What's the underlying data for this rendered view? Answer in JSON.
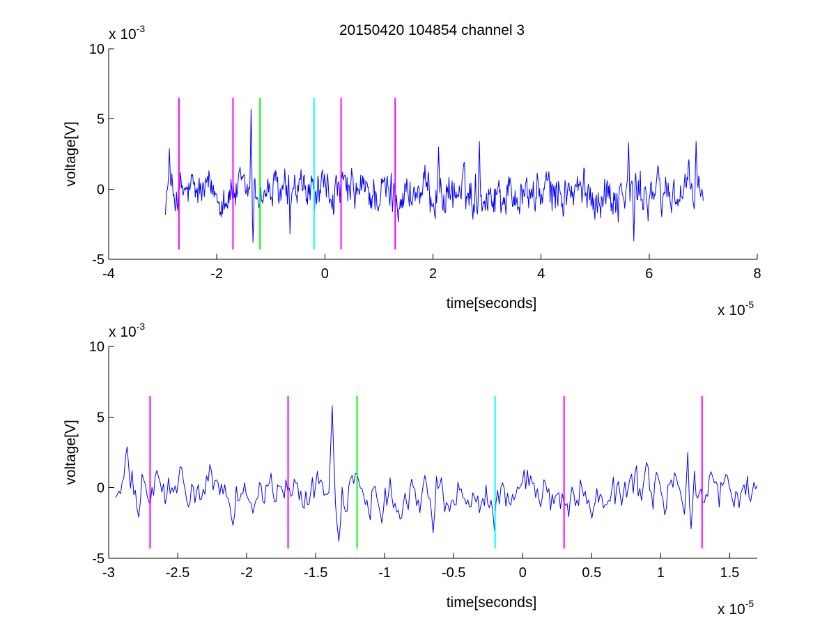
{
  "figure": {
    "title": "20150420 104854 channel 3"
  },
  "chart_data": [
    {
      "type": "line",
      "xlabel": "time[seconds]",
      "ylabel": "voltage[V]",
      "xlim": [
        -4,
        8
      ],
      "ylim": [
        -5,
        10
      ],
      "x_ticks": [
        -4,
        -2,
        0,
        2,
        4,
        6,
        8
      ],
      "y_ticks": [
        -5,
        0,
        5,
        10
      ],
      "x_tick_labels": [
        "-4",
        "-2",
        "0",
        "2",
        "4",
        "6",
        "8"
      ],
      "y_tick_labels": [
        "-5",
        "0",
        "5",
        "10"
      ],
      "x_exponent": {
        "base": "x 10",
        "power": "-5"
      },
      "y_exponent": {
        "base": "x 10",
        "power": "-3"
      },
      "grid": false,
      "series": [
        {
          "color": "#0000ff",
          "x_range": [
            -2.95,
            7.0
          ],
          "y_baseline": -0.3,
          "features": [
            {
              "x": -2.88,
              "y": 2.9
            },
            {
              "x": -1.37,
              "y": 5.7
            },
            {
              "x": -1.33,
              "y": -3.8
            },
            {
              "x": -0.65,
              "y": -3.2
            },
            {
              "x": 2.1,
              "y": 3.0
            },
            {
              "x": 2.86,
              "y": 3.4
            },
            {
              "x": 5.62,
              "y": 3.3
            },
            {
              "x": 5.72,
              "y": -3.7
            },
            {
              "x": 6.87,
              "y": 3.4
            }
          ]
        }
      ],
      "markers": [
        {
          "x": -2.7,
          "y_range": [
            -4.3,
            6.5
          ],
          "color": "#ff00ff"
        },
        {
          "x": -1.7,
          "y_range": [
            -4.3,
            6.5
          ],
          "color": "#ff00ff"
        },
        {
          "x": -1.2,
          "y_range": [
            -4.3,
            6.5
          ],
          "color": "#00ff00"
        },
        {
          "x": -0.2,
          "y_range": [
            -4.3,
            6.5
          ],
          "color": "#00ffff"
        },
        {
          "x": 0.3,
          "y_range": [
            -4.3,
            6.5
          ],
          "color": "#ff00ff"
        },
        {
          "x": 1.3,
          "y_range": [
            -4.3,
            6.5
          ],
          "color": "#ff00ff"
        }
      ]
    },
    {
      "type": "line",
      "xlabel": "time[seconds]",
      "ylabel": "voltage[V]",
      "xlim": [
        -3,
        1.7
      ],
      "ylim": [
        -5,
        10
      ],
      "x_ticks": [
        -3,
        -2.5,
        -2,
        -1.5,
        -1,
        -0.5,
        0,
        0.5,
        1,
        1.5
      ],
      "y_ticks": [
        -5,
        0,
        5,
        10
      ],
      "x_tick_labels": [
        "-3",
        "-2.5",
        "-2",
        "-1.5",
        "-1",
        "-0.5",
        "0",
        "0.5",
        "1",
        "1.5"
      ],
      "y_tick_labels": [
        "-5",
        "0",
        "5",
        "10"
      ],
      "x_exponent": {
        "base": "x 10",
        "power": "-5"
      },
      "y_exponent": {
        "base": "x 10",
        "power": "-3"
      },
      "grid": false,
      "series": [
        {
          "color": "#0000ff",
          "x_range": [
            -2.95,
            1.7
          ],
          "y_baseline": -0.3,
          "features": [
            {
              "x": -2.87,
              "y": 2.9
            },
            {
              "x": -2.78,
              "y": -2.1
            },
            {
              "x": -1.38,
              "y": 5.8
            },
            {
              "x": -1.33,
              "y": -3.8
            },
            {
              "x": -0.65,
              "y": -3.2
            },
            {
              "x": -0.2,
              "y": -3.0
            },
            {
              "x": 0.9,
              "y": 1.8
            },
            {
              "x": 1.2,
              "y": 2.5
            },
            {
              "x": 1.22,
              "y": -2.9
            }
          ]
        }
      ],
      "markers": [
        {
          "x": -2.7,
          "y_range": [
            -4.3,
            6.5
          ],
          "color": "#ff00ff"
        },
        {
          "x": -1.7,
          "y_range": [
            -4.3,
            6.5
          ],
          "color": "#ff00ff"
        },
        {
          "x": -1.2,
          "y_range": [
            -4.3,
            6.5
          ],
          "color": "#00ff00"
        },
        {
          "x": -0.2,
          "y_range": [
            -4.3,
            6.5
          ],
          "color": "#00ffff"
        },
        {
          "x": 0.3,
          "y_range": [
            -4.3,
            6.5
          ],
          "color": "#ff00ff"
        },
        {
          "x": 1.3,
          "y_range": [
            -4.3,
            6.5
          ],
          "color": "#ff00ff"
        }
      ]
    }
  ]
}
